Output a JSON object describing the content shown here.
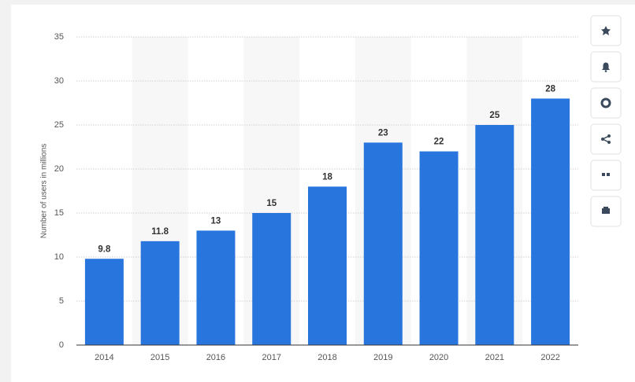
{
  "chart_data": {
    "type": "bar",
    "y_label": "Number of users in millions",
    "categories": [
      "2014",
      "2015",
      "2016",
      "2017",
      "2018",
      "2019",
      "2020",
      "2021",
      "2022"
    ],
    "values": [
      9.8,
      11.8,
      13,
      15,
      18,
      23,
      22,
      25,
      28
    ],
    "color": "#2876dd",
    "ylim": [
      0,
      35
    ],
    "yticks": [
      0,
      5,
      10,
      15,
      20,
      25,
      30,
      35
    ],
    "grid": true
  }
}
